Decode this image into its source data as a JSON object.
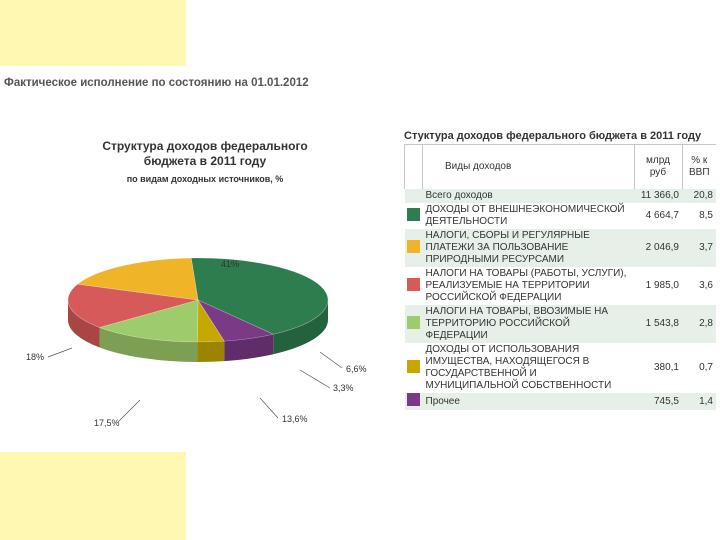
{
  "heading": "Фактическое исполнение по состоянию на 01.01.2012",
  "colors": {
    "green": "#2e7d4f",
    "orange": "#f0b428",
    "red": "#d75a5a",
    "lightgreen": "#9fcc6a",
    "olive": "#c8a800",
    "purple": "#7a3a86",
    "header_band": "#fff8b3",
    "row_alt": "#e6f0e9"
  },
  "chart_data": {
    "type": "pie",
    "title": "Структура доходов федерального бюджета в 2011 году",
    "subtitle": "по видам доходных источников, %",
    "slices": [
      {
        "label": "41%",
        "value": 41,
        "color": "#2e7d4f"
      },
      {
        "label": "6,6%",
        "value": 6.6,
        "color": "#7a3a86"
      },
      {
        "label": "3,3%",
        "value": 3.3,
        "color": "#c8a800"
      },
      {
        "label": "13,6%",
        "value": 13.6,
        "color": "#9fcc6a"
      },
      {
        "label": "17,5%",
        "value": 17.5,
        "color": "#d75a5a"
      },
      {
        "label": "18%",
        "value": 18,
        "color": "#f0b428"
      }
    ]
  },
  "table": {
    "title": "Стуктура доходов федерального бюджета в 2011 году",
    "headers": {
      "name": "Виды доходов",
      "rub": "млрд руб",
      "pct": "% к ВВП"
    },
    "rows": [
      {
        "name": "Всего доходов",
        "rub": "11 366,0",
        "pct": "20,8",
        "color": ""
      },
      {
        "name": "ДОХОДЫ ОТ ВНЕШНЕЭКОНОМИЧЕСКОЙ ДЕЯТЕЛЬНОСТИ",
        "rub": "4 664,7",
        "pct": "8,5",
        "color": "#2e7d4f"
      },
      {
        "name": "НАЛОГИ, СБОРЫ И РЕГУЛЯРНЫЕ ПЛАТЕЖИ ЗА ПОЛЬЗОВАНИЕ ПРИРОДНЫМИ РЕСУРСАМИ",
        "rub": "2 046,9",
        "pct": "3,7",
        "color": "#f0b428"
      },
      {
        "name": "НАЛОГИ НА ТОВАРЫ (РАБОТЫ, УСЛУГИ), РЕАЛИЗУЕМЫЕ НА ТЕРРИТОРИИ РОССИЙСКОЙ ФЕДЕРАЦИИ",
        "rub": "1 985,0",
        "pct": "3,6",
        "color": "#d75a5a"
      },
      {
        "name": "НАЛОГИ НА ТОВАРЫ, ВВОЗИМЫЕ НА ТЕРРИТОРИЮ РОССИЙСКОЙ ФЕДЕРАЦИИ",
        "rub": "1 543,8",
        "pct": "2,8",
        "color": "#9fcc6a"
      },
      {
        "name": "ДОХОДЫ ОТ ИСПОЛЬЗОВАНИЯ ИМУЩЕСТВА, НАХОДЯЩЕГОСЯ В ГОСУДАРСТВЕННОЙ И МУНИЦИПАЛЬНОЙ СОБСТВЕННОСТИ",
        "rub": "380,1",
        "pct": "0,7",
        "color": "#c8a800"
      },
      {
        "name": "Прочее",
        "rub": "745,5",
        "pct": "1,4",
        "color": "#7a3a86"
      }
    ]
  }
}
